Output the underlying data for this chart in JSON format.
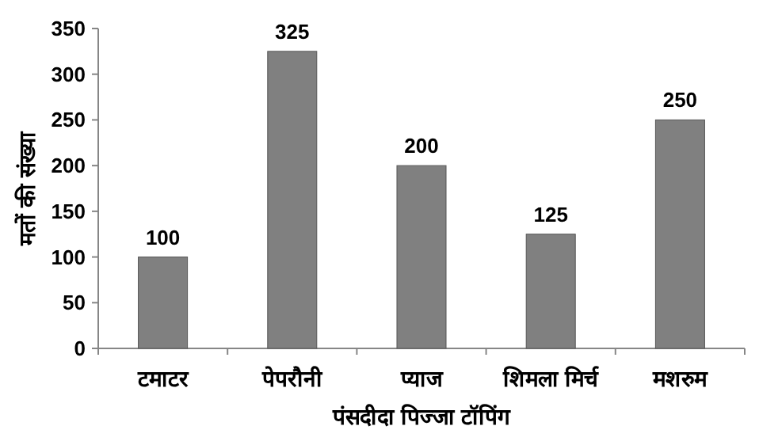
{
  "chart_data": {
    "type": "bar",
    "xlabel": "पंसदीदा पिज्जा टॉपिंग",
    "ylabel": "मतों की संख्या",
    "categories": [
      "टमाटर",
      "पेपरौनी",
      "प्याज",
      "शिमला मिर्च",
      "मशरुम"
    ],
    "values": [
      100,
      325,
      200,
      125,
      250
    ],
    "color": "#808080",
    "ylim": [
      0,
      350
    ],
    "yticks": [
      0,
      50,
      100,
      150,
      200,
      250,
      300,
      350
    ],
    "data_labels": true
  }
}
